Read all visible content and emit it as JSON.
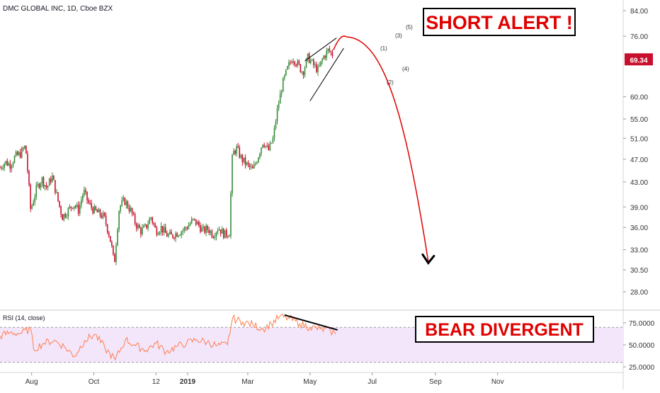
{
  "header": {
    "symbol_title": "DMC GLOBAL INC, 1D, Cboe BZX"
  },
  "annotations": {
    "short_alert": "SHORT ALERT !",
    "bear_divergent": "BEAR DIVERGENT",
    "wave_labels": [
      "(1)",
      "(2)",
      "(3)",
      "(4)",
      "(5)"
    ]
  },
  "colors": {
    "up_candle": "#3a8c3a",
    "down_candle": "#c8102e",
    "projection": "#e00000",
    "rsi_line": "#ff7f50",
    "rsi_band": "#f3e6fb",
    "price_badge": "#c8102e",
    "alert_text": "#e00000"
  },
  "chart_data": [
    {
      "type": "candlestick",
      "title": "DMC GLOBAL INC, 1D, Cboe BZX",
      "last_price_label": "69.34",
      "y_scale": "log",
      "y_ticks": [
        "84.00",
        "76.00",
        "69.34",
        "60.00",
        "55.00",
        "51.00",
        "47.00",
        "43.00",
        "39.00",
        "36.00",
        "33.00",
        "30.50",
        "28.00"
      ],
      "y_tick_values": [
        84,
        76,
        69.34,
        60,
        55,
        51,
        47,
        43,
        39,
        36,
        33,
        30.5,
        28
      ],
      "x_ticks": [
        "Aug",
        "Oct",
        "12",
        "2019",
        "Mar",
        "May",
        "Jul",
        "Sep",
        "Nov"
      ],
      "path_points": [
        [
          "2018-07-01",
          45.5
        ],
        [
          "2018-07-06",
          46.5
        ],
        [
          "2018-07-11",
          46.0
        ],
        [
          "2018-07-16",
          47.5
        ],
        [
          "2018-07-21",
          48.0
        ],
        [
          "2018-07-26",
          49.5
        ],
        [
          "2018-07-31",
          38.5
        ],
        [
          "2018-08-06",
          42.0
        ],
        [
          "2018-08-11",
          43.5
        ],
        [
          "2018-08-16",
          42.0
        ],
        [
          "2018-08-21",
          44.0
        ],
        [
          "2018-08-26",
          40.5
        ],
        [
          "2018-08-31",
          37.5
        ],
        [
          "2018-09-06",
          38.5
        ],
        [
          "2018-09-11",
          39.5
        ],
        [
          "2018-09-16",
          38.5
        ],
        [
          "2018-09-21",
          41.5
        ],
        [
          "2018-09-26",
          39.5
        ],
        [
          "2018-10-01",
          38.5
        ],
        [
          "2018-10-06",
          38.0
        ],
        [
          "2018-10-11",
          37.5
        ],
        [
          "2018-10-16",
          35.0
        ],
        [
          "2018-10-19",
          33.0
        ],
        [
          "2018-10-21",
          31.0
        ],
        [
          "2018-10-26",
          39.0
        ],
        [
          "2018-10-31",
          40.0
        ],
        [
          "2018-11-06",
          38.5
        ],
        [
          "2018-11-11",
          36.5
        ],
        [
          "2018-11-16",
          35.5
        ],
        [
          "2018-11-21",
          36.0
        ],
        [
          "2018-11-26",
          37.5
        ],
        [
          "2018-12-01",
          35.5
        ],
        [
          "2018-12-06",
          36.0
        ],
        [
          "2018-12-11",
          35.0
        ],
        [
          "2018-12-16",
          34.8
        ],
        [
          "2018-12-21",
          35.2
        ],
        [
          "2018-12-26",
          35.5
        ],
        [
          "2018-12-31",
          36.0
        ],
        [
          "2019-01-06",
          37.0
        ],
        [
          "2019-01-11",
          36.5
        ],
        [
          "2019-01-16",
          35.5
        ],
        [
          "2019-01-21",
          35.8
        ],
        [
          "2019-01-26",
          35.0
        ],
        [
          "2019-01-31",
          36.0
        ],
        [
          "2019-02-06",
          35.0
        ],
        [
          "2019-02-11",
          35.3
        ],
        [
          "2019-02-14",
          48.0
        ],
        [
          "2019-02-18",
          49.0
        ],
        [
          "2019-02-23",
          47.0
        ],
        [
          "2019-02-28",
          46.0
        ],
        [
          "2019-03-06",
          45.0
        ],
        [
          "2019-03-11",
          47.5
        ],
        [
          "2019-03-16",
          50.5
        ],
        [
          "2019-03-21",
          48.5
        ],
        [
          "2019-03-26",
          51.0
        ],
        [
          "2019-03-30",
          57.0
        ],
        [
          "2019-04-04",
          63.0
        ],
        [
          "2019-04-09",
          67.0
        ],
        [
          "2019-04-14",
          70.0
        ],
        [
          "2019-04-19",
          68.0
        ],
        [
          "2019-04-24",
          66.0
        ],
        [
          "2019-04-29",
          70.0
        ],
        [
          "2019-05-04",
          68.0
        ],
        [
          "2019-05-09",
          66.5
        ],
        [
          "2019-05-14",
          70.0
        ],
        [
          "2019-05-19",
          72.0
        ],
        [
          "2019-05-24",
          70.5
        ]
      ],
      "projection_end": [
        "2019-08-25",
        31.5
      ]
    },
    {
      "type": "line",
      "title": "RSI (14, close)",
      "y_ticks": [
        "75.0000",
        "50.0000",
        "25.0000"
      ],
      "y_tick_values": [
        75,
        50,
        25
      ],
      "band": [
        30,
        70
      ],
      "rsi_points": [
        [
          "2018-07-01",
          60
        ],
        [
          "2018-07-11",
          64
        ],
        [
          "2018-07-21",
          63
        ],
        [
          "2018-07-31",
          68
        ],
        [
          "2018-08-03",
          45
        ],
        [
          "2018-08-13",
          52
        ],
        [
          "2018-08-23",
          55
        ],
        [
          "2018-09-02",
          48
        ],
        [
          "2018-09-12",
          37
        ],
        [
          "2018-09-22",
          55
        ],
        [
          "2018-10-02",
          62
        ],
        [
          "2018-10-12",
          46
        ],
        [
          "2018-10-22",
          33
        ],
        [
          "2018-11-01",
          56
        ],
        [
          "2018-11-11",
          49
        ],
        [
          "2018-11-21",
          44
        ],
        [
          "2018-12-01",
          52
        ],
        [
          "2018-12-11",
          42
        ],
        [
          "2018-12-21",
          48
        ],
        [
          "2018-12-31",
          52
        ],
        [
          "2019-01-10",
          56
        ],
        [
          "2019-01-20",
          53
        ],
        [
          "2019-01-30",
          49
        ],
        [
          "2019-02-09",
          50
        ],
        [
          "2019-02-14",
          80
        ],
        [
          "2019-02-24",
          76
        ],
        [
          "2019-03-06",
          73
        ],
        [
          "2019-03-16",
          68
        ],
        [
          "2019-03-24",
          74
        ],
        [
          "2019-04-01",
          82
        ],
        [
          "2019-04-11",
          80
        ],
        [
          "2019-04-21",
          74
        ],
        [
          "2019-05-01",
          70
        ],
        [
          "2019-05-11",
          68
        ],
        [
          "2019-05-21",
          66
        ],
        [
          "2019-05-26",
          62
        ]
      ]
    }
  ]
}
